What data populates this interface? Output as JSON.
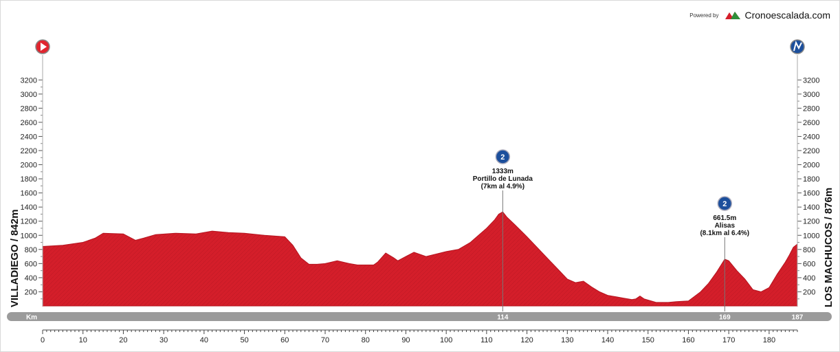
{
  "branding": {
    "powered_by": "Powered by",
    "site": "Cronoescalada.com"
  },
  "start": {
    "label": "VILLADIEGO / 842m"
  },
  "finish": {
    "label": "LOS MACHUCOS / 876m"
  },
  "colors": {
    "profile": "#d41e2a",
    "track": "#9b9b9b",
    "climb_badge": "#1c4f9c",
    "start_icon": "#e0262f"
  },
  "chart_data": {
    "type": "area",
    "xlabel": "",
    "ylabel": "",
    "ylim": [
      0,
      3300
    ],
    "xlim": [
      0,
      187
    ],
    "x_ticks": [
      0,
      10,
      20,
      30,
      40,
      50,
      60,
      70,
      80,
      90,
      100,
      110,
      120,
      130,
      140,
      150,
      160,
      170,
      180
    ],
    "y_ticks": [
      200,
      400,
      600,
      800,
      1000,
      1200,
      1400,
      1600,
      1800,
      2000,
      2200,
      2400,
      2600,
      2800,
      3000,
      3200
    ],
    "km_bar": {
      "label": "Km",
      "marks": [
        "114",
        "169",
        "187"
      ]
    },
    "profile": {
      "x": [
        0,
        5,
        10,
        13,
        15,
        20,
        23,
        25,
        28,
        33,
        38,
        42,
        46,
        50,
        55,
        60,
        62,
        64,
        66,
        68,
        70,
        73,
        76,
        78,
        82,
        83,
        85,
        87,
        88,
        90,
        92,
        95,
        100,
        103,
        106,
        108,
        110,
        112,
        113,
        114,
        115,
        117,
        120,
        123,
        126,
        128,
        130,
        132,
        134,
        136,
        138,
        140,
        142,
        144,
        146,
        147,
        148,
        149,
        152,
        155,
        157,
        160,
        163,
        165,
        167,
        169,
        170,
        172,
        174,
        176,
        178,
        180,
        182,
        184,
        185,
        186,
        187
      ],
      "y": [
        842,
        860,
        900,
        960,
        1030,
        1020,
        930,
        960,
        1010,
        1030,
        1020,
        1060,
        1040,
        1030,
        1000,
        980,
        860,
        680,
        590,
        590,
        600,
        640,
        600,
        580,
        580,
        620,
        750,
        680,
        640,
        700,
        760,
        700,
        770,
        800,
        900,
        1000,
        1100,
        1220,
        1300,
        1333,
        1260,
        1150,
        980,
        800,
        620,
        500,
        380,
        330,
        350,
        270,
        200,
        150,
        130,
        110,
        90,
        100,
        140,
        100,
        50,
        50,
        60,
        70,
        200,
        320,
        480,
        661.5,
        640,
        500,
        380,
        230,
        200,
        260,
        450,
        620,
        720,
        830,
        876
      ]
    },
    "climbs": [
      {
        "km": 114,
        "elevation_text": "1333m",
        "name": "Portillo de Lunada",
        "detail": "(7km al 4.9%)",
        "category": "2"
      },
      {
        "km": 169,
        "elevation_text": "661.5m",
        "name": "Alisas",
        "detail": "(8.1km al 6.4%)",
        "category": "2"
      }
    ]
  }
}
